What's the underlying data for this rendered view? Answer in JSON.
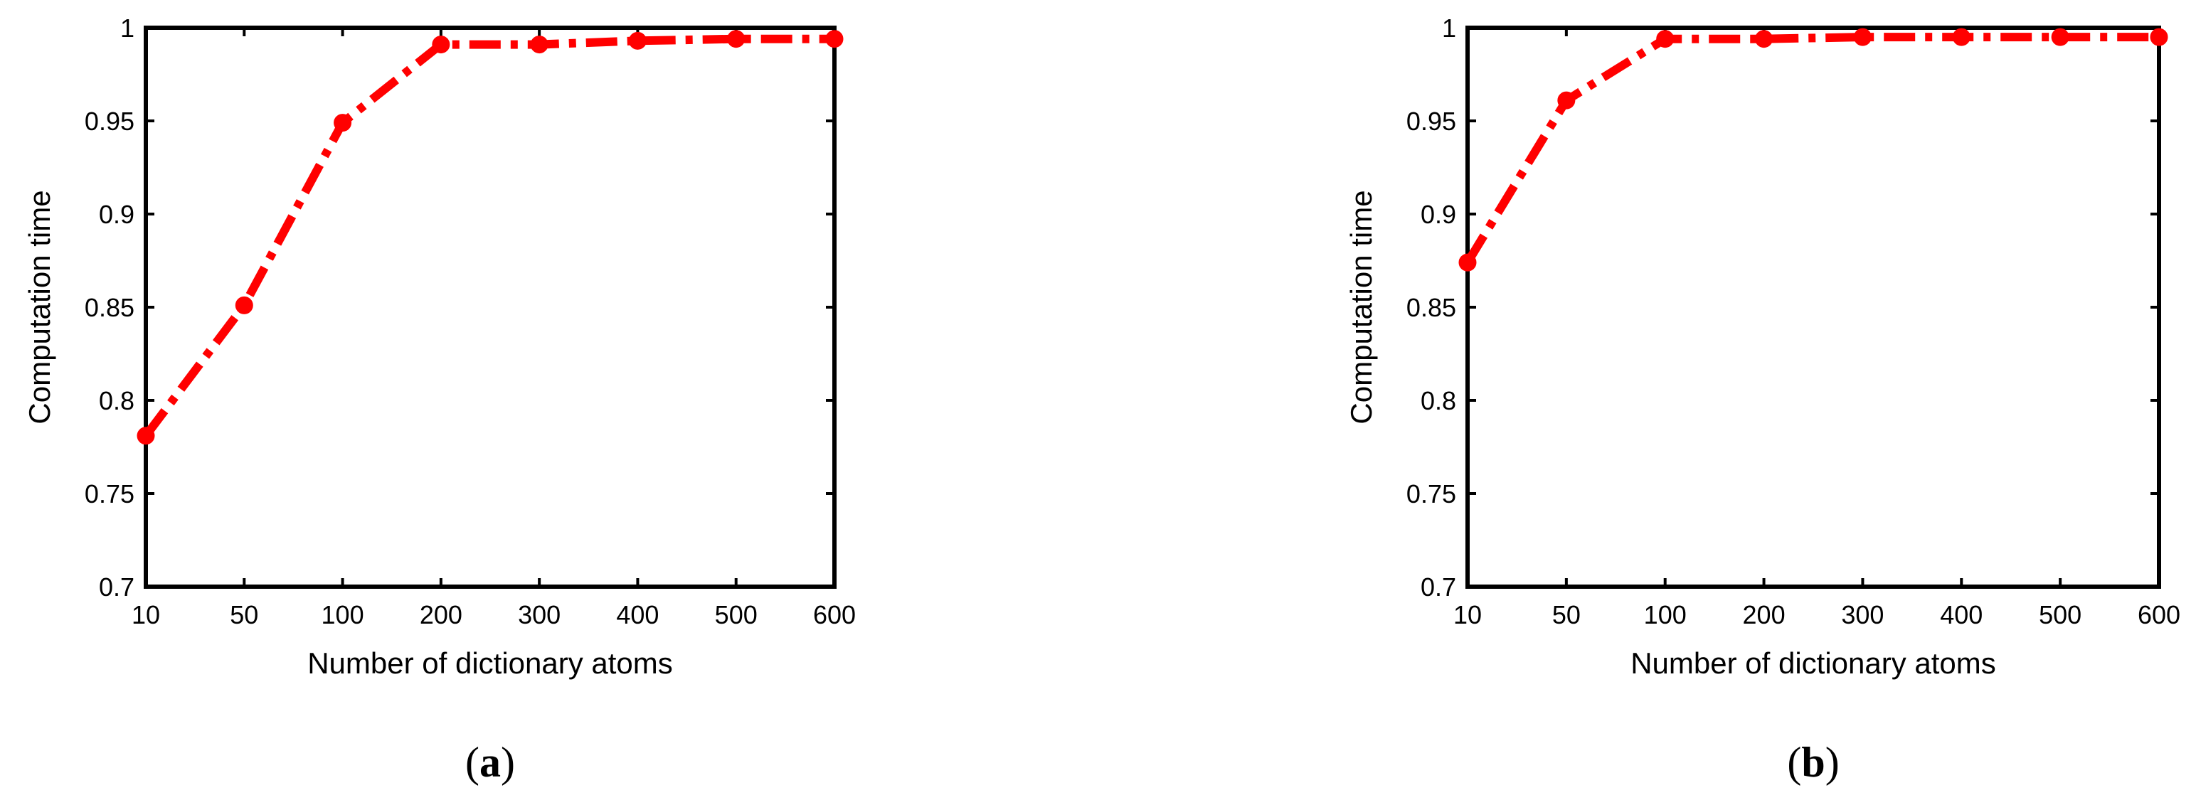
{
  "colors": {
    "series": "#ff0000",
    "axes": "#000000",
    "background": "#ffffff"
  },
  "chart_data": [
    {
      "type": "line",
      "panel_label": {
        "open": "(",
        "letter": "a",
        "close": ")"
      },
      "categories": [
        "10",
        "50",
        "100",
        "200",
        "300",
        "400",
        "500",
        "600"
      ],
      "series": [
        {
          "values": [
            0.781,
            0.851,
            0.949,
            0.991,
            0.991,
            0.993,
            0.994,
            0.994
          ],
          "line_style": "dash-dot",
          "marker": "circle"
        }
      ],
      "xlabel": "Number of dictionary atoms",
      "ylabel": "Computation time",
      "ylim": [
        0.7,
        1
      ],
      "yticks": [
        "0.7",
        "0.75",
        "0.8",
        "0.85",
        "0.9",
        "0.95",
        "1"
      ],
      "grid": false
    },
    {
      "type": "line",
      "panel_label": {
        "open": "(",
        "letter": "b",
        "close": ")"
      },
      "categories": [
        "10",
        "50",
        "100",
        "200",
        "300",
        "400",
        "500",
        "600"
      ],
      "series": [
        {
          "values": [
            0.874,
            0.961,
            0.994,
            0.994,
            0.995,
            0.995,
            0.995,
            0.995
          ],
          "line_style": "dash-dot",
          "marker": "circle"
        }
      ],
      "xlabel": "Number of dictionary atoms",
      "ylabel": "Computation time",
      "ylim": [
        0.7,
        1
      ],
      "yticks": [
        "0.7",
        "0.75",
        "0.8",
        "0.85",
        "0.9",
        "0.95",
        "1"
      ],
      "grid": false
    }
  ]
}
